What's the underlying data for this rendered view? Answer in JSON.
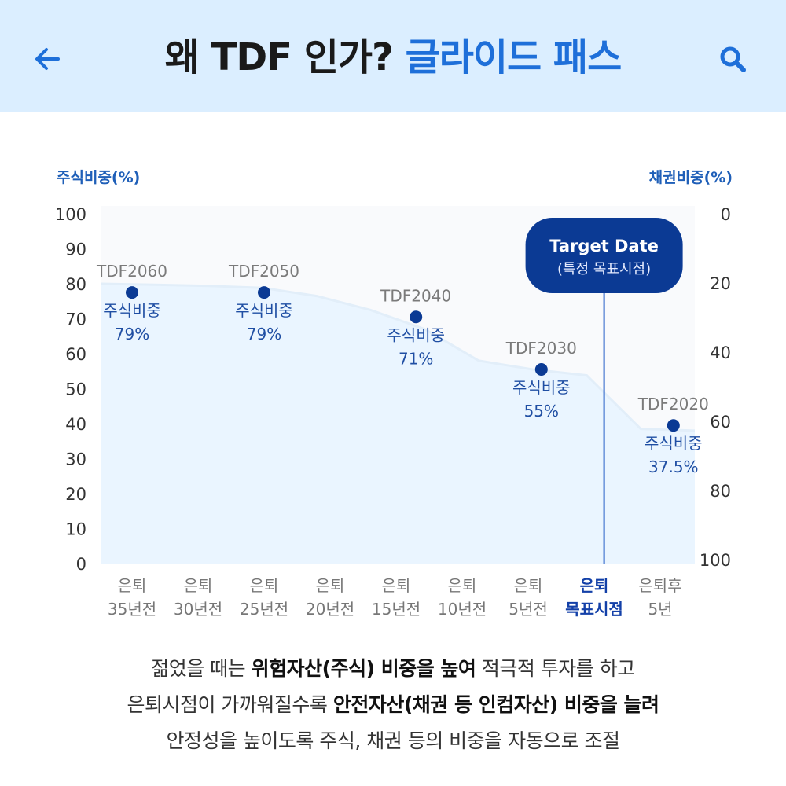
{
  "header": {
    "title_main": "왜 TDF 인가?",
    "title_accent": "글라이드 패스",
    "back_icon": "arrow-left-icon",
    "search_icon": "search-icon",
    "accent_color": "#1e6fd9",
    "background_color": "#dbeeff"
  },
  "chart_data": {
    "type": "area",
    "left_axis_title": "주식비중(%)",
    "right_axis_title": "채권비중(%)",
    "y_ticks_left": [
      "100",
      "90",
      "80",
      "70",
      "60",
      "50",
      "40",
      "30",
      "20",
      "10",
      "0"
    ],
    "y_ticks_right": [
      "0",
      "20",
      "40",
      "60",
      "80",
      "100"
    ],
    "ylim": [
      0,
      100
    ],
    "categories": [
      {
        "line1": "은퇴",
        "line2": "35년전",
        "highlight": false
      },
      {
        "line1": "은퇴",
        "line2": "30년전",
        "highlight": false
      },
      {
        "line1": "은퇴",
        "line2": "25년전",
        "highlight": false
      },
      {
        "line1": "은퇴",
        "line2": "20년전",
        "highlight": false
      },
      {
        "line1": "은퇴",
        "line2": "15년전",
        "highlight": false
      },
      {
        "line1": "은퇴",
        "line2": "10년전",
        "highlight": false
      },
      {
        "line1": "은퇴",
        "line2": "5년전",
        "highlight": false
      },
      {
        "line1": "은퇴",
        "line2": "목표시점",
        "highlight": true
      },
      {
        "line1": "은퇴후",
        "line2": "5년",
        "highlight": false
      }
    ],
    "glide_path": [
      80,
      79.7,
      79.4,
      78.8,
      76.5,
      72.5,
      67,
      58,
      55.5,
      53.8,
      38.5,
      38
    ],
    "funds": [
      {
        "name": "TDF2060",
        "share_label": "주식비중",
        "share_value": "79%",
        "x_index": 0,
        "y": 77.5
      },
      {
        "name": "TDF2050",
        "share_label": "주식비중",
        "share_value": "79%",
        "x_index": 2,
        "y": 77.5
      },
      {
        "name": "TDF2040",
        "share_label": "주식비중",
        "share_value": "71%",
        "x_index": 4.3,
        "y": 70.5
      },
      {
        "name": "TDF2030",
        "share_label": "주식비중",
        "share_value": "55%",
        "x_index": 6.2,
        "y": 55.5
      },
      {
        "name": "TDF2020",
        "share_label": "주식비중",
        "share_value": "37.5%",
        "x_index": 8.2,
        "y": 39.5
      }
    ],
    "target": {
      "title": "Target Date",
      "subtitle": "(특정 목표시점)",
      "x_index": 7.15
    },
    "colors": {
      "area": "#eaf5ff",
      "area_top": "#dfeefb",
      "plot_bg": "#f9fafc",
      "dot": "#0b3a94",
      "target_bg": "#0b3a94",
      "target_line": "#2a62c9"
    }
  },
  "caption": {
    "line1": [
      "젊었을 때는 ",
      "위험자산(주식) 비중을 높여",
      " 적극적 투자를 하고"
    ],
    "line2": [
      "은퇴시점이 가까워질수록 ",
      "안전자산(채권 등 인컴자산) 비중을 늘려"
    ],
    "line3": "안정성을 높이도록 주식, 채권 등의 비중을 자동으로 조절"
  }
}
